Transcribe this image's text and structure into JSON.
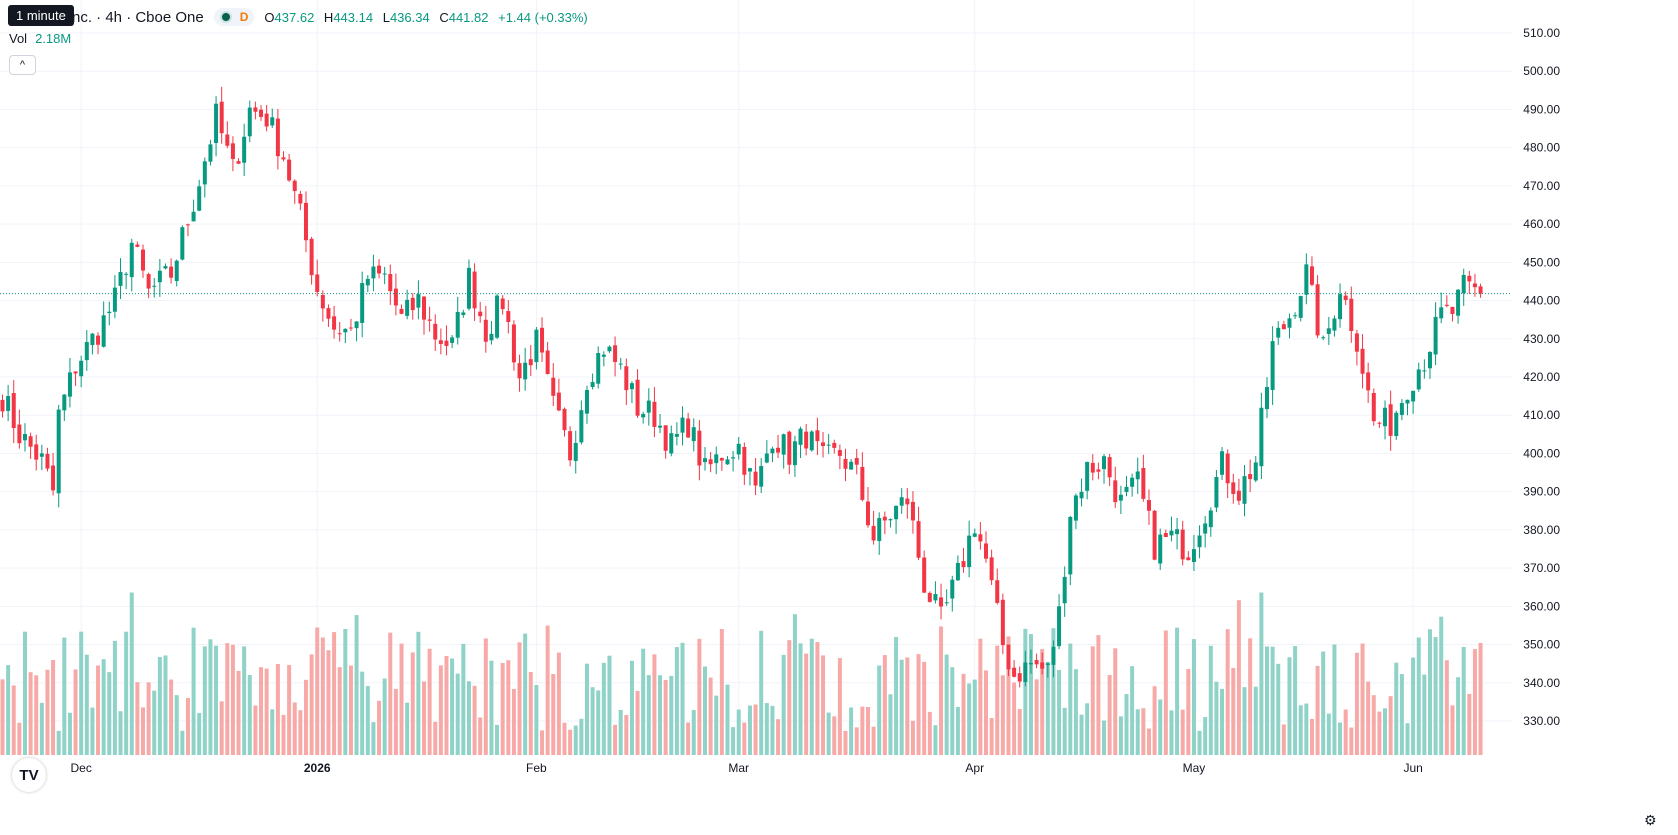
{
  "header": {
    "tooltip": "1 minute",
    "symbol": "nc. · 4h · Cboe One",
    "interval_badge": "D",
    "open_label": "O",
    "open": "437.62",
    "high_label": "H",
    "high": "443.14",
    "low_label": "L",
    "low": "436.34",
    "close_label": "C",
    "close": "441.82",
    "change": "+1.44 (+0.33%)"
  },
  "volume": {
    "label": "Vol",
    "value": "2.18M"
  },
  "colors": {
    "up": "#089981",
    "down": "#f23645",
    "up_vol": "#8fd2c7",
    "down_vol": "#f7a9a7",
    "grid": "#f0f3fa",
    "axis_text": "#131722"
  },
  "icons": {
    "collapse": "chevron-up-icon",
    "logo": "tradingview-logo",
    "settings": "gear-icon"
  },
  "collapse_glyph": "^",
  "logo_text": "TV",
  "settings_glyph": "⚙",
  "chart_data": {
    "type": "candlestick",
    "ylim": [
      323,
      515
    ],
    "y_ticks": [
      "510.00",
      "500.00",
      "490.00",
      "480.00",
      "470.00",
      "460.00",
      "450.00",
      "440.00",
      "430.00",
      "420.00",
      "410.00",
      "400.00",
      "390.00",
      "380.00",
      "370.00",
      "360.00",
      "350.00",
      "340.00",
      "330.00"
    ],
    "x_ticks": [
      "Dec",
      "2026",
      "Feb",
      "Mar",
      "Apr",
      "May",
      "Jun"
    ],
    "last_price": "441.82",
    "last_price_value": 441.82,
    "last_volume": "2.18M",
    "bar_count": 264,
    "x_tick_bars": [
      14,
      56,
      95,
      131,
      173,
      212,
      251
    ],
    "anchors": [
      [
        0,
        415
      ],
      [
        3,
        405
      ],
      [
        7,
        398
      ],
      [
        9,
        390
      ],
      [
        10,
        410
      ],
      [
        13,
        423
      ],
      [
        17,
        432
      ],
      [
        20,
        440
      ],
      [
        23,
        455
      ],
      [
        26,
        442
      ],
      [
        30,
        447
      ],
      [
        34,
        466
      ],
      [
        38,
        488
      ],
      [
        41,
        474
      ],
      [
        44,
        490
      ],
      [
        47,
        488
      ],
      [
        50,
        478
      ],
      [
        53,
        462
      ],
      [
        56,
        443
      ],
      [
        59,
        433
      ],
      [
        62,
        432
      ],
      [
        65,
        446
      ],
      [
        68,
        446
      ],
      [
        71,
        435
      ],
      [
        74,
        440
      ],
      [
        77,
        431
      ],
      [
        80,
        428
      ],
      [
        83,
        446
      ],
      [
        86,
        432
      ],
      [
        89,
        440
      ],
      [
        92,
        420
      ],
      [
        95,
        429
      ],
      [
        98,
        412
      ],
      [
        101,
        400
      ],
      [
        104,
        420
      ],
      [
        107,
        428
      ],
      [
        110,
        422
      ],
      [
        113,
        412
      ],
      [
        116,
        410
      ],
      [
        119,
        402
      ],
      [
        122,
        408
      ],
      [
        125,
        395
      ],
      [
        128,
        400
      ],
      [
        131,
        402
      ],
      [
        134,
        390
      ],
      [
        137,
        405
      ],
      [
        140,
        400
      ],
      [
        143,
        405
      ],
      [
        146,
        398
      ],
      [
        149,
        400
      ],
      [
        152,
        394
      ],
      [
        155,
        378
      ],
      [
        158,
        384
      ],
      [
        161,
        388
      ],
      [
        164,
        366
      ],
      [
        167,
        356
      ],
      [
        170,
        368
      ],
      [
        173,
        382
      ],
      [
        175,
        372
      ],
      [
        178,
        350
      ],
      [
        180,
        342
      ],
      [
        183,
        345
      ],
      [
        186,
        343
      ],
      [
        188,
        358
      ],
      [
        190,
        385
      ],
      [
        193,
        396
      ],
      [
        196,
        398
      ],
      [
        199,
        387
      ],
      [
        202,
        392
      ],
      [
        205,
        376
      ],
      [
        208,
        378
      ],
      [
        211,
        375
      ],
      [
        214,
        385
      ],
      [
        217,
        397
      ],
      [
        220,
        390
      ],
      [
        223,
        398
      ],
      [
        226,
        428
      ],
      [
        229,
        436
      ],
      [
        232,
        447
      ],
      [
        235,
        427
      ],
      [
        238,
        444
      ],
      [
        241,
        430
      ],
      [
        244,
        408
      ],
      [
        247,
        408
      ],
      [
        250,
        418
      ],
      [
        253,
        425
      ],
      [
        256,
        436
      ],
      [
        258,
        437
      ],
      [
        260,
        443
      ],
      [
        263,
        441.82
      ]
    ],
    "volume_range": [
      0,
      4.5
    ]
  }
}
